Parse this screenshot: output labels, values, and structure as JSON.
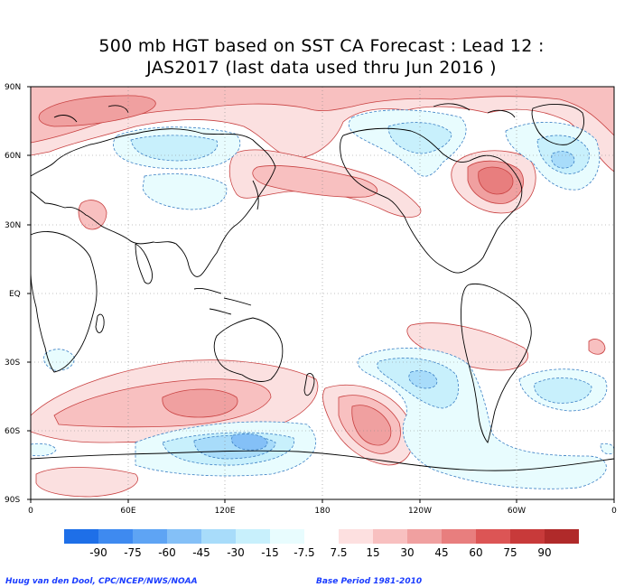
{
  "title": {
    "line1": "500 mb HGT based on SST CA Forecast : Lead 12 :",
    "line2": "JAS2017 (last data used thru Jun 2016 )"
  },
  "map": {
    "lat_labels": [
      "90N",
      "60N",
      "30N",
      "EQ",
      "30S",
      "60S",
      "90S"
    ],
    "lon_labels": [
      "0",
      "60E",
      "120E",
      "180",
      "120W",
      "60W",
      "0"
    ]
  },
  "colorbar": {
    "labels": [
      "-90",
      "-75",
      "-60",
      "-45",
      "-30",
      "-15",
      "-7.5",
      "7.5",
      "15",
      "30",
      "45",
      "60",
      "75",
      "90"
    ],
    "colors": [
      "#1e6fe8",
      "#3e8af0",
      "#5ea4f4",
      "#84c0f7",
      "#a8dcfa",
      "#c8f0fc",
      "#e8fcfe",
      "#ffffff",
      "#fde0e0",
      "#f8c0c0",
      "#f0a0a0",
      "#e87e7e",
      "#dc5555",
      "#c83a3a",
      "#b02a2a"
    ]
  },
  "credits": {
    "left": "Huug van den Dool, CPC/NCEP/NWS/NOAA",
    "right": "Base Period 1981-2010"
  }
}
